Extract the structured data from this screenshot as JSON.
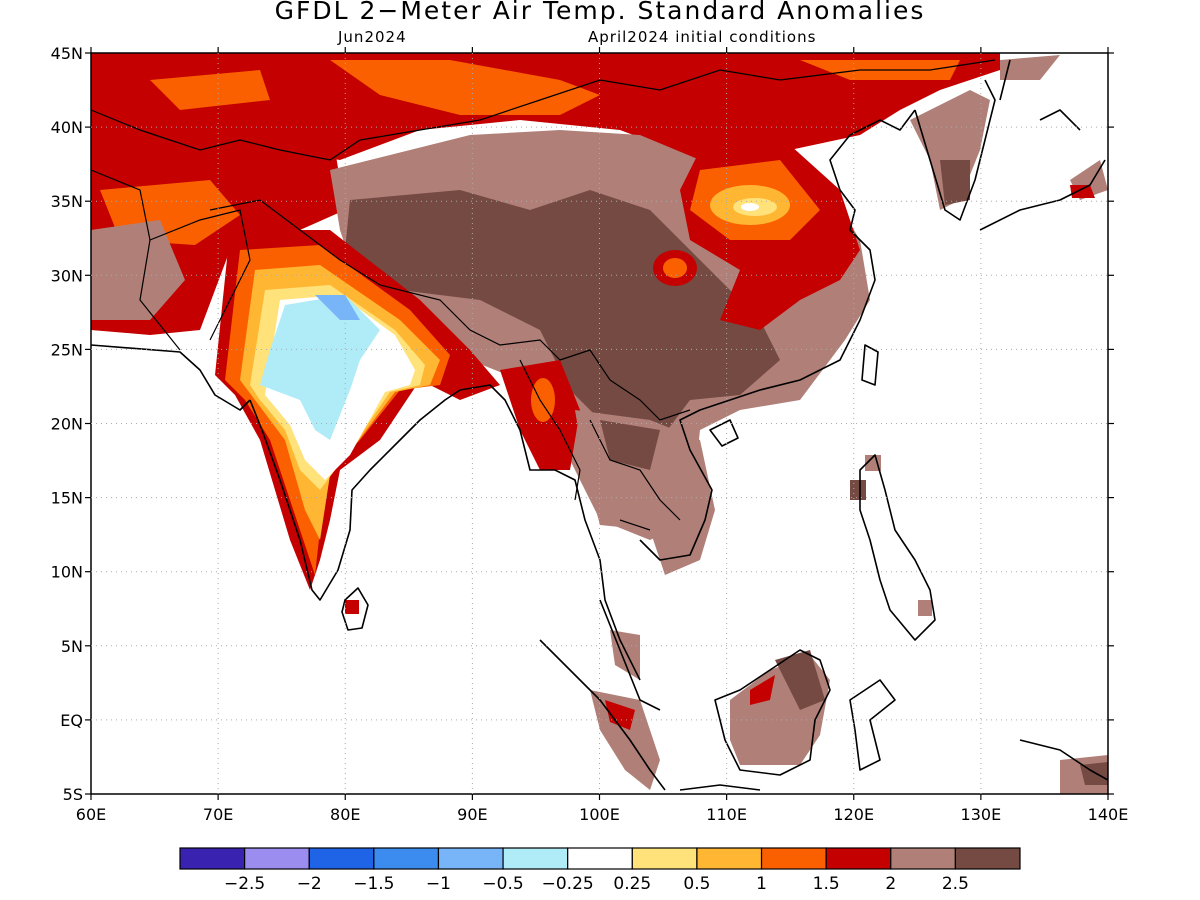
{
  "title": "GFDL 2−Meter Air Temp. Standard Anomalies",
  "subtitle_left": "Jun2024",
  "subtitle_right": "April2024 initial conditions",
  "lat_labels": [
    "45N",
    "40N",
    "35N",
    "30N",
    "25N",
    "20N",
    "15N",
    "10N",
    "5N",
    "EQ",
    "5S"
  ],
  "lon_labels": [
    "60E",
    "70E",
    "80E",
    "90E",
    "100E",
    "110E",
    "120E",
    "130E",
    "140E"
  ],
  "colorbar": {
    "colors": [
      "#3a22b0",
      "#9b8cf0",
      "#1f63e6",
      "#3c8cf0",
      "#78b4f8",
      "#b0ecf8",
      "#ffffff",
      "#ffe27a",
      "#ffb632",
      "#fb6000",
      "#c40000",
      "#b08078",
      "#744a42"
    ],
    "labels": [
      "−2.5",
      "−2",
      "−1.5",
      "−1",
      "−0.5",
      "−0.25",
      "0.25",
      "0.5",
      "1",
      "1.5",
      "2",
      "2.5"
    ]
  },
  "map_extent": {
    "lon": [
      60,
      140
    ],
    "lat": [
      -5,
      45
    ]
  }
}
